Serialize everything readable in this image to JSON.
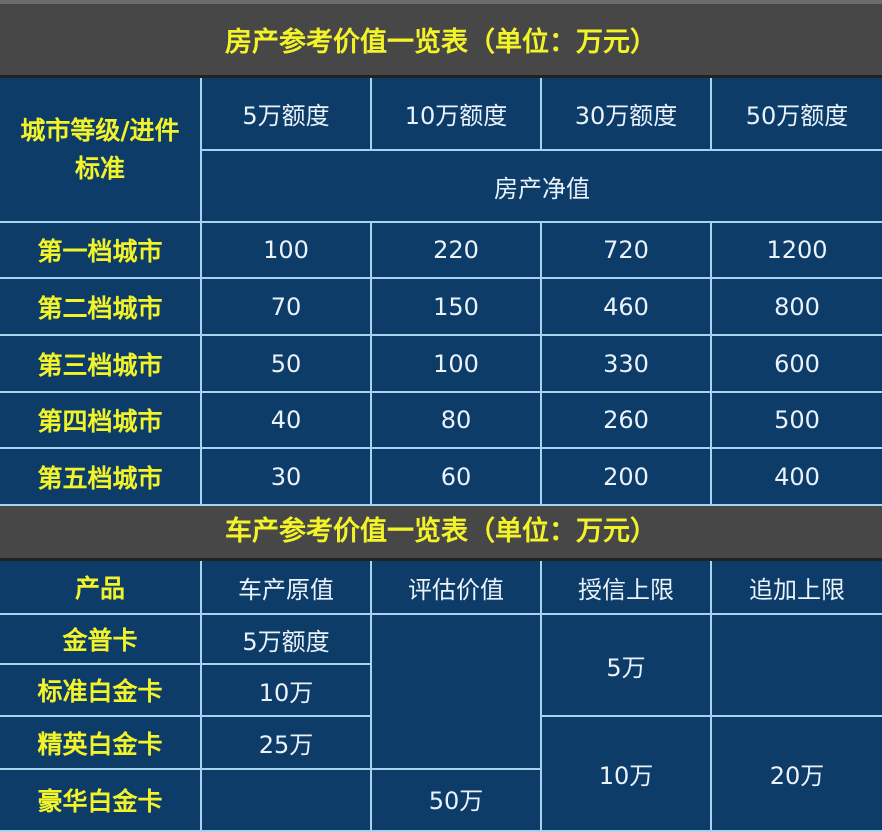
{
  "house": {
    "title": "房产参考价值一览表（单位：万元）",
    "corner": "城市等级/进件标准",
    "columns": [
      "5万额度",
      "10万额度",
      "30万额度",
      "50万额度"
    ],
    "subheader": "房产净值",
    "rows": [
      {
        "label": "第一档城市",
        "values": [
          "100",
          "220",
          "720",
          "1200"
        ]
      },
      {
        "label": "第二档城市",
        "values": [
          "70",
          "150",
          "460",
          "800"
        ]
      },
      {
        "label": "第三档城市",
        "values": [
          "50",
          "100",
          "330",
          "600"
        ]
      },
      {
        "label": "第四档城市",
        "values": [
          "40",
          "80",
          "260",
          "500"
        ]
      },
      {
        "label": "第五档城市",
        "values": [
          "30",
          "60",
          "200",
          "400"
        ]
      }
    ]
  },
  "car": {
    "title": "车产参考价值一览表（单位：万元）",
    "columns": [
      "产品",
      "车产原值",
      "评估价值",
      "授信上限",
      "追加上限"
    ],
    "products": [
      "金普卡",
      "标准白金卡",
      "精英白金卡",
      "豪华白金卡"
    ],
    "original_values": [
      "5万额度",
      "10万",
      "25万",
      ""
    ],
    "assessed_value": "50万",
    "credit_limits": [
      "5万",
      "10万"
    ],
    "additional_limit": "20万"
  },
  "colors": {
    "title_bg": "#474747",
    "title_text": "#f3f32a",
    "table_bg": "#0d3c69",
    "grid": "#a9d2f2"
  }
}
